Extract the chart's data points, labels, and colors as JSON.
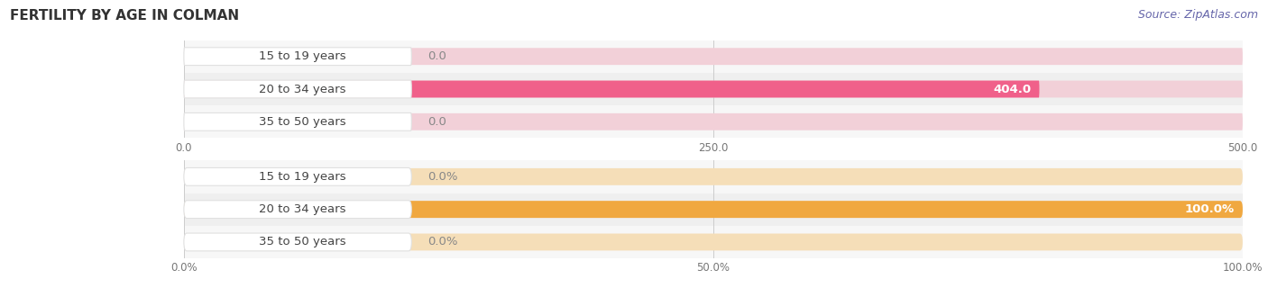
{
  "title": "FERTILITY BY AGE IN COLMAN",
  "source": "Source: ZipAtlas.com",
  "top_chart": {
    "categories": [
      "15 to 19 years",
      "20 to 34 years",
      "35 to 50 years"
    ],
    "values": [
      0.0,
      404.0,
      0.0
    ],
    "xlim": [
      0,
      500
    ],
    "xticks": [
      0.0,
      250.0,
      500.0
    ],
    "bar_color": "#F0608A",
    "bar_bg_color": "#F2D0D8",
    "value_labels": [
      "0.0",
      "404.0",
      "0.0"
    ]
  },
  "bottom_chart": {
    "categories": [
      "15 to 19 years",
      "20 to 34 years",
      "35 to 50 years"
    ],
    "values": [
      0.0,
      100.0,
      0.0
    ],
    "xlim": [
      0,
      100
    ],
    "xticks": [
      0.0,
      50.0,
      100.0
    ],
    "xtick_labels": [
      "0.0%",
      "50.0%",
      "100.0%"
    ],
    "bar_color": "#F0A840",
    "bar_bg_color": "#F5DEB8",
    "value_labels": [
      "0.0%",
      "100.0%",
      "0.0%"
    ]
  },
  "bg_color": "#ffffff",
  "row_odd_color": "#F7F7F7",
  "row_even_color": "#EFEFEF",
  "label_fontsize": 9.5,
  "title_fontsize": 11,
  "source_fontsize": 9,
  "bar_height": 0.52,
  "label_text_color": "#444444",
  "tick_color": "#777777"
}
